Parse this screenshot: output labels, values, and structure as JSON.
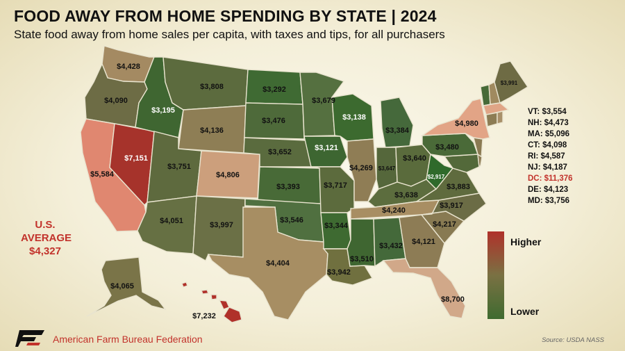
{
  "header": {
    "title": "FOOD AWAY FROM HOME SPENDING BY STATE | 2024",
    "subtitle": "State food away from home sales per capita, with taxes and tips, for all purchasers"
  },
  "average": {
    "line1": "U.S.",
    "line2": "AVERAGE",
    "value": "$4,327"
  },
  "legend": {
    "high_label": "Higher",
    "low_label": "Lower"
  },
  "colors": {
    "high": "#b0312a",
    "low": "#3f6b30",
    "accent": "#c2322b"
  },
  "states": {
    "WA": "$4,428",
    "OR": "$4,090",
    "CA": "$5,584",
    "NV": "$7,151",
    "ID": "$3,195",
    "MT": "$3,808",
    "WY": "$4,136",
    "UT": "$3,751",
    "AZ": "$4,051",
    "CO": "$4,806",
    "NM": "$3,997",
    "ND": "$3,292",
    "SD": "$3,476",
    "NE": "$3,652",
    "KS": "$3,393",
    "OK": "$3,546",
    "TX": "$4,404",
    "MN": "$3,679",
    "IA": "$3,121",
    "MO": "$3,717",
    "AR": "$3,344",
    "LA": "$3,942",
    "WI": "$3,138",
    "IL": "$4,269",
    "MI": "$3,384",
    "IN": "$3,647",
    "OH": "$3,640",
    "KY": "$3,638",
    "TN": "$4,240",
    "MS": "$3,510",
    "AL": "$3,432",
    "GA": "$4,121",
    "FL": "$8,700",
    "SC": "$4,217",
    "NC": "$3,917",
    "VA": "$3,883",
    "WV": "$2,917",
    "PA": "$3,480",
    "NY": "$4,980",
    "ME": "$3,991",
    "AK": "$4,065",
    "HI": "$7,232"
  },
  "northeast": [
    "VT: $3,554",
    "NH: $4,473",
    "MA: $5,096",
    "CT: $4,098",
    "RI: $4,587",
    "NJ: $4,187",
    "DC: $11,376",
    "DE: $4,123",
    "MD: $3,756"
  ],
  "footer": {
    "org": "American Farm Bureau Federation",
    "source": "Source: USDA NASS"
  }
}
